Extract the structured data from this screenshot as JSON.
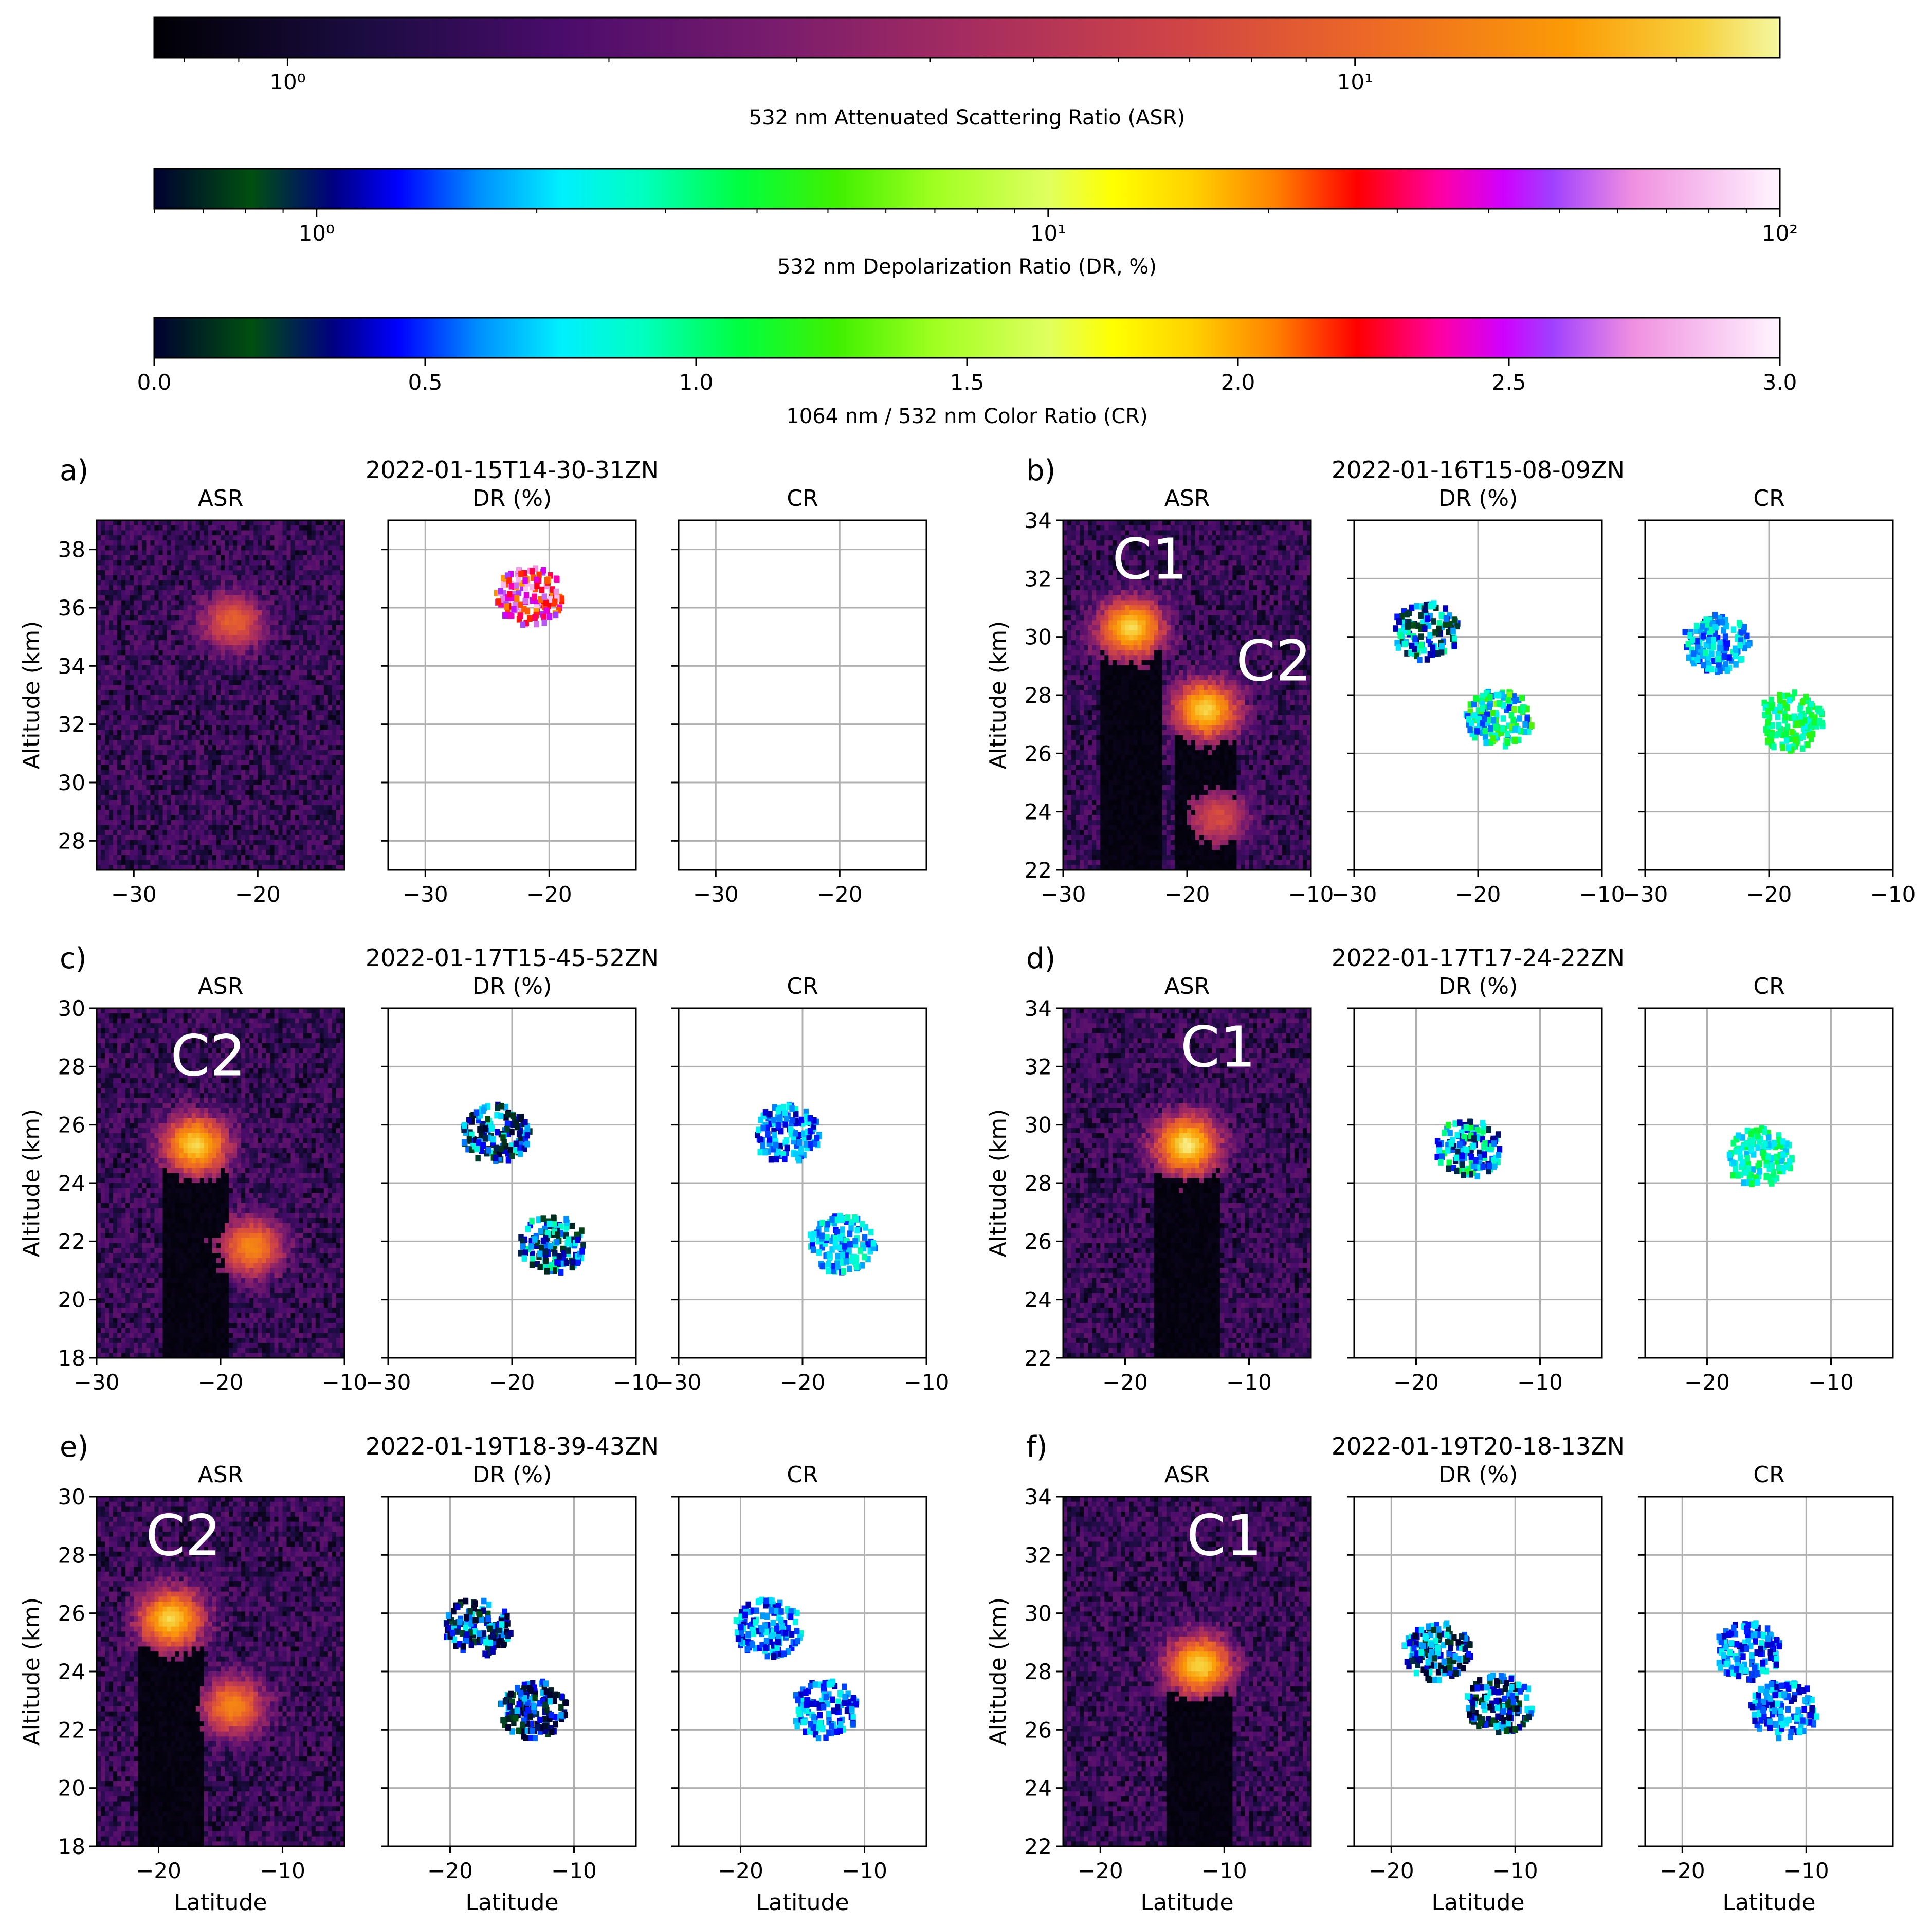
{
  "colorbars": [
    {
      "id": "asr",
      "label": "532 nm Attenuated Scattering Ratio (ASR)",
      "scale": "log",
      "range": [
        0.75,
        25
      ],
      "ticks": [
        {
          "v": 1,
          "label": "10⁰"
        },
        {
          "v": 10,
          "label": "10¹"
        }
      ],
      "cmap": "inferno"
    },
    {
      "id": "dr",
      "label": "532 nm Depolarization Ratio (DR, %)",
      "scale": "log",
      "range": [
        0.6,
        100
      ],
      "ticks": [
        {
          "v": 1,
          "label": "10⁰"
        },
        {
          "v": 10,
          "label": "10¹"
        },
        {
          "v": 100,
          "label": "10²"
        }
      ],
      "cmap": "spectral"
    },
    {
      "id": "cr",
      "label": "1064 nm / 532 nm Color Ratio (CR)",
      "scale": "linear",
      "range": [
        0,
        3
      ],
      "ticks": [
        {
          "v": 0,
          "label": "0.0"
        },
        {
          "v": 0.5,
          "label": "0.5"
        },
        {
          "v": 1,
          "label": "1.0"
        },
        {
          "v": 1.5,
          "label": "1.5"
        },
        {
          "v": 2,
          "label": "2.0"
        },
        {
          "v": 2.5,
          "label": "2.5"
        },
        {
          "v": 3,
          "label": "3.0"
        }
      ],
      "cmap": "spectral"
    }
  ],
  "subplot_titles": {
    "asr": "ASR",
    "dr": "DR (%)",
    "cr": "CR"
  },
  "ylabel": "Altitude (km)",
  "xlabel": "Latitude",
  "chart_data": [
    {
      "type": "heatmap",
      "panel": "a)",
      "title": "2022-01-15T14-30-31ZN",
      "xlim": [
        -33,
        -13
      ],
      "ylim": [
        27,
        39
      ],
      "xticks": [
        -30,
        -20
      ],
      "yticks": [
        28,
        30,
        32,
        34,
        36,
        38
      ],
      "annotations": [],
      "asr_features": [
        {
          "lat": -22,
          "alt": 35.5,
          "intensity": 8
        }
      ],
      "dr_features": [
        {
          "lat": -21.8,
          "alt": 36.5,
          "dominant_dr_pct": 40
        }
      ],
      "cr_features": []
    },
    {
      "type": "heatmap",
      "panel": "b)",
      "title": "2022-01-16T15-08-09ZN",
      "xlim": [
        -30,
        -10
      ],
      "ylim": [
        22,
        34
      ],
      "xticks": [
        -30,
        -20,
        -10
      ],
      "yticks": [
        22,
        24,
        26,
        28,
        30,
        32,
        34
      ],
      "annotations": [
        {
          "label": "C1",
          "lat": -23,
          "alt": 32
        },
        {
          "label": "C2",
          "lat": -13,
          "alt": 28.5
        }
      ],
      "asr_features": [
        {
          "lat": -24.5,
          "alt": 30.3,
          "intensity": 20
        },
        {
          "lat": -18.5,
          "alt": 27.5,
          "intensity": 20
        },
        {
          "lat": -17.5,
          "alt": 23.8,
          "intensity": 6
        }
      ],
      "dr_features": [
        {
          "lat": -24.5,
          "alt": 30.3,
          "dominant_dr_pct": 1.5
        },
        {
          "lat": -18.5,
          "alt": 27.3,
          "dominant_dr_pct": 3
        }
      ],
      "cr_features": [
        {
          "lat": -24.5,
          "alt": 29.9,
          "dominant_cr": 0.7
        },
        {
          "lat": -18.5,
          "alt": 27.2,
          "dominant_cr": 1.0
        }
      ]
    },
    {
      "type": "heatmap",
      "panel": "c)",
      "title": "2022-01-17T15-45-52ZN",
      "xlim": [
        -30,
        -10
      ],
      "ylim": [
        18,
        30
      ],
      "xticks": [
        -30,
        -20,
        -10
      ],
      "yticks": [
        18,
        20,
        22,
        24,
        26,
        28,
        30
      ],
      "annotations": [
        {
          "label": "C2",
          "lat": -21,
          "alt": 27.7
        }
      ],
      "asr_features": [
        {
          "lat": -22,
          "alt": 25.3,
          "intensity": 20
        },
        {
          "lat": -17.5,
          "alt": 21.8,
          "intensity": 12
        }
      ],
      "dr_features": [
        {
          "lat": -21.5,
          "alt": 25.8,
          "dominant_dr_pct": 1.2
        },
        {
          "lat": -17,
          "alt": 22,
          "dominant_dr_pct": 1.5
        }
      ],
      "cr_features": [
        {
          "lat": -21.5,
          "alt": 25.8,
          "dominant_cr": 0.6
        },
        {
          "lat": -17,
          "alt": 22,
          "dominant_cr": 0.7
        }
      ]
    },
    {
      "type": "heatmap",
      "panel": "d)",
      "title": "2022-01-17T17-24-22ZN",
      "xlim": [
        -25,
        -5
      ],
      "ylim": [
        22,
        34
      ],
      "xticks": [
        -20,
        -10
      ],
      "yticks": [
        22,
        24,
        26,
        28,
        30,
        32,
        34
      ],
      "annotations": [
        {
          "label": "C1",
          "lat": -12.5,
          "alt": 32
        }
      ],
      "asr_features": [
        {
          "lat": -15,
          "alt": 29.3,
          "intensity": 22
        }
      ],
      "dr_features": [
        {
          "lat": -16,
          "alt": 29.3,
          "dominant_dr_pct": 2
        }
      ],
      "cr_features": [
        {
          "lat": -16,
          "alt": 29,
          "dominant_cr": 0.9
        }
      ]
    },
    {
      "type": "heatmap",
      "panel": "e)",
      "title": "2022-01-19T18-39-43ZN",
      "xlim": [
        -25,
        -5
      ],
      "ylim": [
        18,
        30
      ],
      "xticks": [
        -20,
        -10
      ],
      "yticks": [
        18,
        20,
        22,
        24,
        26,
        28,
        30
      ],
      "annotations": [
        {
          "label": "C2",
          "lat": -18,
          "alt": 28
        }
      ],
      "asr_features": [
        {
          "lat": -19,
          "alt": 25.8,
          "intensity": 20
        },
        {
          "lat": -14,
          "alt": 22.8,
          "intensity": 12
        }
      ],
      "dr_features": [
        {
          "lat": -18,
          "alt": 25.6,
          "dominant_dr_pct": 1.1
        },
        {
          "lat": -13.5,
          "alt": 22.8,
          "dominant_dr_pct": 0.9
        }
      ],
      "cr_features": [
        {
          "lat": -18,
          "alt": 25.6,
          "dominant_cr": 0.6
        },
        {
          "lat": -13.5,
          "alt": 22.8,
          "dominant_cr": 0.6
        }
      ]
    },
    {
      "type": "heatmap",
      "panel": "f)",
      "title": "2022-01-19T20-18-13ZN",
      "xlim": [
        -23,
        -3
      ],
      "ylim": [
        22,
        34
      ],
      "xticks": [
        -20,
        -10
      ],
      "yticks": [
        22,
        24,
        26,
        28,
        30,
        32,
        34
      ],
      "annotations": [
        {
          "label": "C1",
          "lat": -10,
          "alt": 32
        }
      ],
      "asr_features": [
        {
          "lat": -12,
          "alt": 28.2,
          "intensity": 20
        }
      ],
      "dr_features": [
        {
          "lat": -16.5,
          "alt": 28.8,
          "dominant_dr_pct": 1.2
        },
        {
          "lat": -11.5,
          "alt": 27,
          "dominant_dr_pct": 1.1
        }
      ],
      "cr_features": [
        {
          "lat": -15,
          "alt": 28.8,
          "dominant_cr": 0.6
        },
        {
          "lat": -12,
          "alt": 26.8,
          "dominant_cr": 0.6
        }
      ]
    }
  ]
}
